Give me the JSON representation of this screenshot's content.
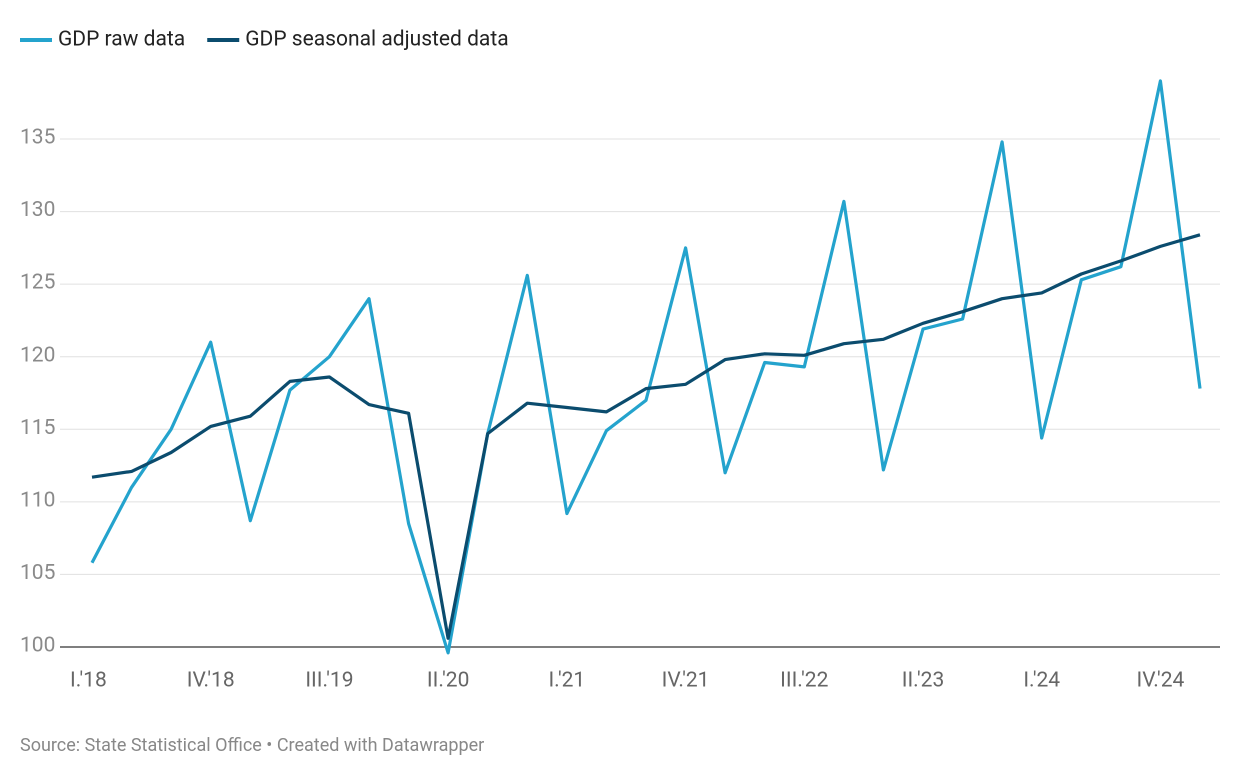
{
  "chart_data": {
    "type": "line",
    "categories": [
      "I.'18",
      null,
      null,
      "IV.'18",
      null,
      null,
      "III.'19",
      null,
      null,
      "II.'20",
      null,
      null,
      "I.'21",
      null,
      null,
      "IV.'21",
      null,
      null,
      "III.'22",
      null,
      null,
      "II.'23",
      null,
      null,
      "I.'24",
      null,
      null,
      "IV.'24",
      null
    ],
    "series": [
      {
        "name": "GDP raw data",
        "color": "#24a3cd",
        "values": [
          105.8,
          111,
          115,
          121,
          108.7,
          117.7,
          120,
          124,
          108.5,
          99.6,
          114.7,
          125.6,
          109.2,
          114.9,
          117,
          127.5,
          112,
          119.6,
          119.3,
          130.7,
          112.2,
          121.9,
          122.6,
          134.8,
          114.4,
          125.3,
          126.2,
          139,
          117.8
        ]
      },
      {
        "name": "GDP seasonal adjusted data",
        "color": "#0b4c6e",
        "values": [
          111.7,
          112.1,
          113.4,
          115.2,
          115.9,
          118.3,
          118.6,
          116.7,
          116.1,
          100.6,
          114.7,
          116.8,
          116.5,
          116.2,
          117.8,
          118.1,
          119.8,
          120.2,
          120.1,
          120.9,
          121.2,
          122.3,
          123.1,
          124.0,
          124.4,
          125.7,
          126.6,
          127.6,
          128.4
        ]
      }
    ],
    "ylim": [
      100,
      140
    ],
    "yticks": [
      100,
      105,
      110,
      115,
      120,
      125,
      130,
      135
    ],
    "grid": true,
    "legend": "top",
    "source": "Source: State Statistical Office • Created with Datawrapper"
  }
}
